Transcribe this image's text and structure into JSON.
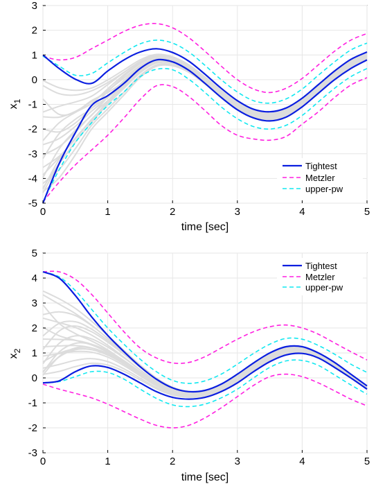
{
  "colors": {
    "tightest": "#0a1ee0",
    "metzler": "#ff1fe0",
    "upper_pw": "#10e8f0",
    "trajectories": "#dcdcdc",
    "grid": "#e6e6e6"
  },
  "chart_data": [
    {
      "type": "line",
      "xlabel": "time [sec]",
      "ylabel": "x",
      "ylabel_sub": "1",
      "xlim": [
        0,
        5
      ],
      "ylim": [
        -5,
        3
      ],
      "xticks": [
        "0",
        "1",
        "2",
        "3",
        "4",
        "5"
      ],
      "yticks": [
        "-5",
        "-4",
        "-3",
        "-2",
        "-1",
        "0",
        "1",
        "2",
        "3"
      ],
      "grid": true,
      "legend_position": "bottom-right",
      "legend": [
        "Tightest",
        "Metzler",
        "upper-pw"
      ],
      "series": [
        {
          "name": "Tightest",
          "style": "solid",
          "x": [
            0,
            0.25,
            0.5,
            0.75,
            1,
            1.25,
            1.5,
            1.75,
            2,
            2.25,
            2.5,
            2.75,
            3,
            3.25,
            3.5,
            3.75,
            4,
            4.25,
            4.5,
            4.75,
            5
          ],
          "y": [
            1.0,
            0.45,
            0.02,
            -0.15,
            0.35,
            0.8,
            1.12,
            1.25,
            1.1,
            0.75,
            0.22,
            -0.35,
            -0.85,
            -1.2,
            -1.3,
            -1.15,
            -0.75,
            -0.2,
            0.35,
            0.82,
            1.12
          ]
        },
        {
          "name": "Tightest",
          "style": "solid",
          "x": [
            0,
            0.25,
            0.5,
            0.75,
            1,
            1.25,
            1.5,
            1.75,
            2,
            2.25,
            2.5,
            2.75,
            3,
            3.25,
            3.5,
            3.75,
            4,
            4.25,
            4.5,
            4.75,
            5
          ],
          "y": [
            -5.0,
            -3.4,
            -2.15,
            -1.05,
            -0.65,
            -0.15,
            0.45,
            0.8,
            0.72,
            0.38,
            -0.15,
            -0.72,
            -1.22,
            -1.55,
            -1.67,
            -1.52,
            -1.1,
            -0.55,
            0.0,
            0.45,
            0.8
          ]
        },
        {
          "name": "Metzler",
          "style": "dashed",
          "x": [
            0,
            0.25,
            0.5,
            0.75,
            1,
            1.25,
            1.5,
            1.75,
            2,
            2.25,
            2.5,
            2.75,
            3,
            3.25,
            3.5,
            3.75,
            4,
            4.25,
            4.5,
            4.75,
            5
          ],
          "y": [
            0.95,
            0.8,
            0.9,
            1.25,
            1.6,
            1.95,
            2.2,
            2.27,
            2.1,
            1.7,
            1.15,
            0.55,
            0.0,
            -0.38,
            -0.52,
            -0.35,
            0.05,
            0.6,
            1.15,
            1.6,
            1.87
          ]
        },
        {
          "name": "Metzler",
          "style": "dashed",
          "x": [
            0,
            0.25,
            0.5,
            0.75,
            1,
            1.25,
            1.5,
            1.75,
            2,
            2.25,
            2.5,
            2.75,
            3,
            3.25,
            3.5,
            3.75,
            4,
            4.25,
            4.5,
            4.75,
            5
          ],
          "y": [
            -4.95,
            -4.15,
            -3.45,
            -2.85,
            -2.25,
            -1.55,
            -0.8,
            -0.25,
            -0.28,
            -0.68,
            -1.25,
            -1.85,
            -2.25,
            -2.4,
            -2.45,
            -2.3,
            -1.8,
            -1.3,
            -0.72,
            -0.22,
            0.08
          ]
        },
        {
          "name": "upper-pw",
          "style": "dashed",
          "x": [
            0,
            0.25,
            0.5,
            0.75,
            1,
            1.25,
            1.5,
            1.75,
            2,
            2.25,
            2.5,
            2.75,
            3,
            3.25,
            3.5,
            3.75,
            4,
            4.25,
            4.5,
            4.75,
            5
          ],
          "y": [
            0.95,
            0.55,
            0.18,
            0.25,
            0.68,
            1.1,
            1.45,
            1.6,
            1.48,
            1.12,
            0.58,
            0.0,
            -0.5,
            -0.85,
            -0.95,
            -0.78,
            -0.38,
            0.18,
            0.72,
            1.2,
            1.48
          ]
        },
        {
          "name": "upper-pw",
          "style": "dashed",
          "x": [
            0,
            0.25,
            0.5,
            0.75,
            1,
            1.25,
            1.5,
            1.75,
            2,
            2.25,
            2.5,
            2.75,
            3,
            3.25,
            3.5,
            3.75,
            4,
            4.25,
            4.5,
            4.75,
            5
          ],
          "y": [
            -4.95,
            -3.65,
            -2.55,
            -1.75,
            -1.05,
            -0.5,
            0.12,
            0.42,
            0.4,
            0.02,
            -0.52,
            -1.1,
            -1.58,
            -1.9,
            -2.0,
            -1.85,
            -1.45,
            -0.9,
            -0.35,
            0.12,
            0.45
          ]
        }
      ]
    },
    {
      "type": "line",
      "xlabel": "time [sec]",
      "ylabel": "x",
      "ylabel_sub": "2",
      "xlim": [
        0,
        5
      ],
      "ylim": [
        -3,
        5
      ],
      "xticks": [
        "0",
        "1",
        "2",
        "3",
        "4",
        "5"
      ],
      "yticks": [
        "-3",
        "-2",
        "-1",
        "0",
        "1",
        "2",
        "3",
        "4",
        "5"
      ],
      "grid": true,
      "legend_position": "top-right",
      "legend": [
        "Tightest",
        "Metzler",
        "upper-pw"
      ],
      "series": [
        {
          "name": "Tightest",
          "style": "solid",
          "x": [
            0,
            0.25,
            0.5,
            0.75,
            1,
            1.25,
            1.5,
            1.75,
            2,
            2.25,
            2.5,
            2.75,
            3,
            3.25,
            3.5,
            3.75,
            4,
            4.25,
            4.5,
            4.75,
            5
          ],
          "y": [
            4.25,
            4.0,
            3.3,
            2.45,
            1.7,
            1.05,
            0.45,
            -0.05,
            -0.4,
            -0.55,
            -0.5,
            -0.25,
            0.15,
            0.6,
            1.0,
            1.25,
            1.25,
            1.0,
            0.62,
            0.15,
            -0.32
          ]
        },
        {
          "name": "Tightest",
          "style": "solid",
          "x": [
            0,
            0.25,
            0.5,
            0.75,
            1,
            1.25,
            1.5,
            1.75,
            2,
            2.25,
            2.5,
            2.75,
            3,
            3.25,
            3.5,
            3.75,
            4,
            4.25,
            4.5,
            4.75,
            5
          ],
          "y": [
            -0.2,
            -0.12,
            0.25,
            0.48,
            0.42,
            0.15,
            -0.2,
            -0.55,
            -0.78,
            -0.85,
            -0.78,
            -0.55,
            -0.2,
            0.25,
            0.65,
            0.92,
            0.98,
            0.8,
            0.42,
            0.0,
            -0.45
          ]
        },
        {
          "name": "Metzler",
          "style": "dashed",
          "x": [
            0,
            0.25,
            0.5,
            0.75,
            1,
            1.25,
            1.5,
            1.75,
            2,
            2.25,
            2.5,
            2.75,
            3,
            3.25,
            3.5,
            3.75,
            4,
            4.25,
            4.5,
            4.75,
            5
          ],
          "y": [
            4.25,
            4.25,
            3.95,
            3.35,
            2.6,
            1.85,
            1.2,
            0.8,
            0.6,
            0.62,
            0.85,
            1.2,
            1.55,
            1.85,
            2.05,
            2.12,
            2.0,
            1.75,
            1.4,
            1.05,
            0.72
          ]
        },
        {
          "name": "Metzler",
          "style": "dashed",
          "x": [
            0,
            0.25,
            0.5,
            0.75,
            1,
            1.25,
            1.5,
            1.75,
            2,
            2.25,
            2.5,
            2.75,
            3,
            3.25,
            3.5,
            3.75,
            4,
            4.25,
            4.5,
            4.75,
            5
          ],
          "y": [
            -0.25,
            -0.45,
            -0.62,
            -0.8,
            -1.05,
            -1.35,
            -1.65,
            -1.9,
            -2.0,
            -1.9,
            -1.6,
            -1.2,
            -0.75,
            -0.3,
            0.05,
            0.15,
            0.05,
            -0.2,
            -0.52,
            -0.85,
            -1.12
          ]
        },
        {
          "name": "upper-pw",
          "style": "dashed",
          "x": [
            0,
            0.25,
            0.5,
            0.75,
            1,
            1.25,
            1.5,
            1.75,
            2,
            2.25,
            2.5,
            2.75,
            3,
            3.25,
            3.5,
            3.75,
            4,
            4.25,
            4.5,
            4.75,
            5
          ],
          "y": [
            4.25,
            4.05,
            3.5,
            2.75,
            2.0,
            1.35,
            0.75,
            0.25,
            -0.1,
            -0.22,
            -0.12,
            0.15,
            0.55,
            0.98,
            1.35,
            1.58,
            1.55,
            1.3,
            0.95,
            0.55,
            0.22
          ]
        },
        {
          "name": "upper-pw",
          "style": "dashed",
          "x": [
            0,
            0.25,
            0.5,
            0.75,
            1,
            1.25,
            1.5,
            1.75,
            2,
            2.25,
            2.5,
            2.75,
            3,
            3.25,
            3.5,
            3.75,
            4,
            4.25,
            4.5,
            4.75,
            5
          ],
          "y": [
            -0.2,
            -0.15,
            0.05,
            0.25,
            0.22,
            -0.05,
            -0.45,
            -0.82,
            -1.08,
            -1.15,
            -1.05,
            -0.8,
            -0.45,
            0.0,
            0.42,
            0.68,
            0.7,
            0.5,
            0.12,
            -0.28,
            -0.65
          ]
        }
      ]
    }
  ]
}
